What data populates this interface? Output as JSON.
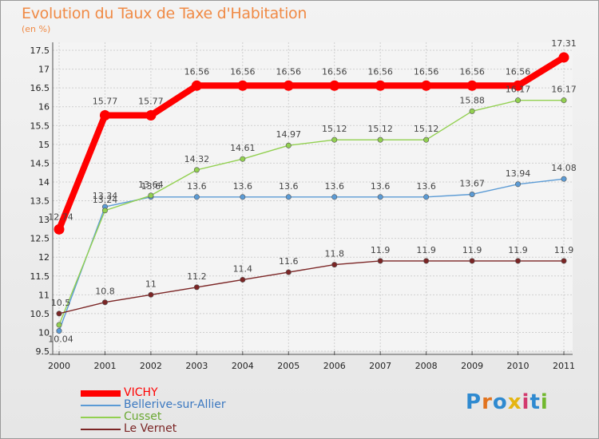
{
  "header": {
    "title": "Evolution du Taux de Taxe d'Habitation",
    "subtitle": "(en %)"
  },
  "logo": {
    "text": "Proxiti",
    "letter_colors": [
      "#2f8ad0",
      "#e2731e",
      "#2f8ad0",
      "#e5b512",
      "#d23a6e",
      "#2f8ad0",
      "#71b82e"
    ]
  },
  "chart_data": {
    "type": "line",
    "title": "Evolution du Taux de Taxe d'Habitation",
    "ylabel": "(en %)",
    "xlabel": "",
    "x": [
      "2000",
      "2001",
      "2002",
      "2003",
      "2004",
      "2005",
      "2006",
      "2007",
      "2008",
      "2009",
      "2010",
      "2011"
    ],
    "ylim": [
      9.5,
      17.5
    ],
    "yticks": [
      "9.5",
      "10",
      "10.5",
      "11",
      "11.5",
      "12",
      "12.5",
      "13",
      "13.5",
      "14",
      "14.5",
      "15",
      "15.5",
      "16",
      "16.5",
      "17",
      "17.5"
    ],
    "grid": true,
    "legend_position": "bottom-left",
    "series": [
      {
        "name": "VICHY",
        "color": "#ff0000",
        "thickness": "heavy",
        "values": [
          12.74,
          15.77,
          15.77,
          16.56,
          16.56,
          16.56,
          16.56,
          16.56,
          16.56,
          16.56,
          16.56,
          17.31
        ],
        "labels": [
          "12.74",
          "15.77",
          "15.77",
          "16.56",
          "16.56",
          "16.56",
          "16.56",
          "16.56",
          "16.56",
          "16.56",
          "16.56",
          "17.31"
        ]
      },
      {
        "name": "Bellerive-sur-Allier",
        "color": "#5b9bd5",
        "thickness": "thin",
        "values": [
          10.04,
          13.34,
          13.6,
          13.6,
          13.6,
          13.6,
          13.6,
          13.6,
          13.6,
          13.67,
          13.94,
          14.08
        ],
        "labels": [
          "10.04",
          "13.34",
          "13.6",
          "13.6",
          "13.6",
          "13.6",
          "13.6",
          "13.6",
          "13.6",
          "13.67",
          "13.94",
          "14.08"
        ]
      },
      {
        "name": "Cusset",
        "color": "#92d050",
        "thickness": "thin",
        "values": [
          10.2,
          13.24,
          13.64,
          14.32,
          14.61,
          14.97,
          15.12,
          15.12,
          15.12,
          15.88,
          16.17,
          16.17
        ],
        "labels": [
          "",
          "13.24",
          "13.64",
          "14.32",
          "14.61",
          "14.97",
          "15.12",
          "15.12",
          "15.12",
          "15.88",
          "16.17",
          "16.17"
        ]
      },
      {
        "name": "Le Vernet",
        "color": "#7b2525",
        "thickness": "thin",
        "values": [
          10.5,
          10.8,
          11,
          11.2,
          11.4,
          11.6,
          11.8,
          11.9,
          11.9,
          11.9,
          11.9,
          11.9
        ],
        "labels": [
          "10.5",
          "10.8",
          "11",
          "11.2",
          "11.4",
          "11.6",
          "11.8",
          "11.9",
          "11.9",
          "11.9",
          "11.9",
          "11.9"
        ]
      }
    ]
  }
}
